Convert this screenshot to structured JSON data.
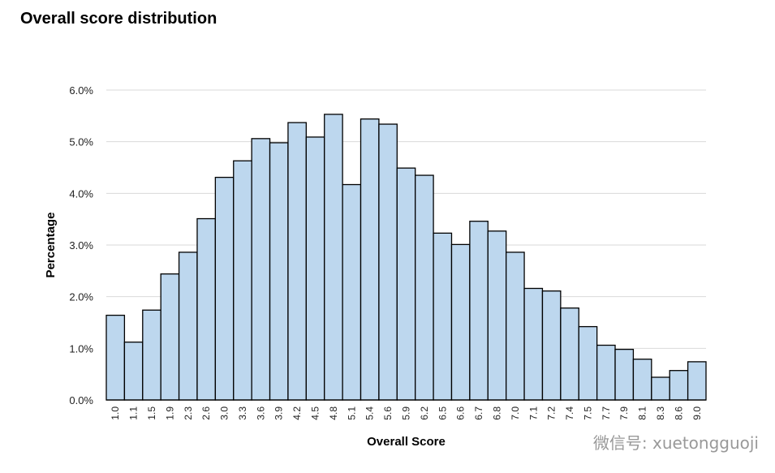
{
  "page": {
    "title": "Overall score distribution"
  },
  "chart_data": {
    "type": "bar",
    "title": "Overall score distribution",
    "xlabel": "Overall Score",
    "ylabel": "Percentage",
    "ylim": [
      0,
      6
    ],
    "yticks": [
      "0.0%",
      "1.0%",
      "2.0%",
      "3.0%",
      "4.0%",
      "5.0%",
      "6.0%"
    ],
    "grid": true,
    "categories": [
      "1.0",
      "1.1",
      "1.5",
      "1.9",
      "2.3",
      "2.6",
      "3.0",
      "3.3",
      "3.6",
      "3.9",
      "4.2",
      "4.5",
      "4.8",
      "5.1",
      "5.4",
      "5.6",
      "5.9",
      "6.2",
      "6.5",
      "6.6",
      "6.7",
      "6.8",
      "7.0",
      "7.1",
      "7.2",
      "7.4",
      "7.5",
      "7.7",
      "7.9",
      "8.1",
      "8.3",
      "8.6",
      "9.0"
    ],
    "values": [
      1.64,
      1.12,
      1.74,
      2.44,
      2.86,
      3.51,
      4.31,
      4.63,
      5.06,
      4.98,
      5.37,
      5.09,
      5.53,
      4.17,
      5.44,
      5.34,
      4.49,
      4.35,
      3.23,
      3.01,
      3.46,
      3.27,
      2.86,
      2.16,
      2.11,
      1.78,
      1.42,
      1.06,
      0.98,
      0.79,
      0.44,
      0.57,
      0.74
    ],
    "colors": {
      "bar_fill": "#bdd7ee",
      "bar_stroke": "#000000",
      "grid": "#d9d9d9"
    }
  },
  "watermark": {
    "text": "微信号: xuetongguoji"
  }
}
